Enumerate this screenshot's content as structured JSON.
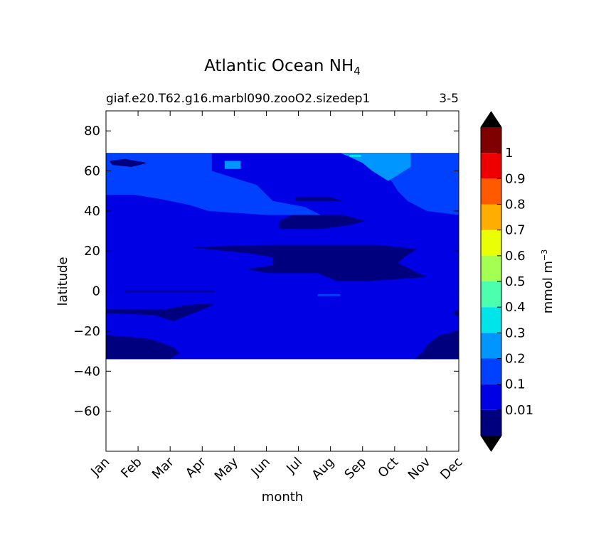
{
  "chart_data": {
    "type": "heatmap",
    "title": "Atlantic Ocean NH",
    "title_subscript": "4",
    "subtitle_left": "giaf.e20.T62.g16.marbl090.zooO2.sizedep1",
    "subtitle_right": "3-5",
    "xlabel": "month",
    "ylabel": "latitude",
    "x_ticks": [
      "Jan",
      "Feb",
      "Mar",
      "Apr",
      "May",
      "Jun",
      "Jul",
      "Aug",
      "Sep",
      "Oct",
      "Nov",
      "Dec"
    ],
    "ylim": [
      -80,
      90
    ],
    "y_ticks": [
      80,
      60,
      40,
      20,
      0,
      -20,
      -40,
      -60
    ],
    "data_lat_range": [
      -34,
      69
    ],
    "colorbar": {
      "label": "mmol m",
      "label_superscript": "−3",
      "levels": [
        0,
        0.01,
        0.1,
        0.2,
        0.3,
        0.4,
        0.5,
        0.6,
        0.7,
        0.8,
        0.9,
        1,
        1.1
      ],
      "tick_labels": [
        "0.01",
        "0.1",
        "0.2",
        "0.3",
        "0.4",
        "0.5",
        "0.6",
        "0.7",
        "0.8",
        "0.9",
        "1"
      ],
      "colors": [
        "#00007f",
        "#0000e5",
        "#0040ff",
        "#0096ff",
        "#00e5ea",
        "#4bffae",
        "#a4ff53",
        "#eaff06",
        "#ffad00",
        "#ff5a00",
        "#ee0000",
        "#7f0000"
      ],
      "extend": "both",
      "under_color": "#000000",
      "over_color": "#000000"
    },
    "regions": [
      {
        "name": "background",
        "level": 1,
        "points": [
          [
            0,
            -34
          ],
          [
            11,
            -34
          ],
          [
            11,
            69
          ],
          [
            0,
            69
          ]
        ]
      },
      {
        "name": "north-band",
        "level": 2,
        "points": [
          [
            0,
            69
          ],
          [
            3.3,
            69
          ],
          [
            3.3,
            66
          ],
          [
            3.3,
            60
          ],
          [
            4.7,
            53
          ],
          [
            5.2,
            45
          ],
          [
            6.2,
            42
          ],
          [
            6.7,
            38
          ],
          [
            5,
            38
          ],
          [
            3.2,
            40
          ],
          [
            2.6,
            43
          ],
          [
            1.7,
            46
          ],
          [
            0.9,
            48
          ],
          [
            0,
            48
          ]
        ]
      },
      {
        "name": "north-band-right",
        "level": 2,
        "points": [
          [
            7.3,
            69
          ],
          [
            11,
            69
          ],
          [
            11,
            38
          ],
          [
            10,
            40
          ],
          [
            9.4,
            45
          ],
          [
            9.1,
            50
          ],
          [
            8.9,
            55
          ],
          [
            8.6,
            60
          ],
          [
            8.1,
            64
          ]
        ]
      },
      {
        "name": "autumn-patch",
        "level": 3,
        "points": [
          [
            7.3,
            69
          ],
          [
            9.5,
            69
          ],
          [
            9.5,
            62
          ],
          [
            9.1,
            58
          ],
          [
            8.8,
            55
          ],
          [
            8.3,
            60
          ],
          [
            8,
            64
          ],
          [
            7.6,
            67
          ]
        ]
      },
      {
        "name": "may-patch",
        "level": 3,
        "points": [
          [
            3.7,
            65
          ],
          [
            4.2,
            65
          ],
          [
            4.2,
            61
          ],
          [
            3.7,
            61
          ]
        ]
      },
      {
        "name": "sep-fleck",
        "level": 4,
        "points": [
          [
            7.6,
            68
          ],
          [
            7.95,
            68
          ],
          [
            7.95,
            67
          ],
          [
            7.6,
            67
          ]
        ]
      },
      {
        "name": "jan-corner",
        "level": 0,
        "points": [
          [
            0.1,
            65
          ],
          [
            0.6,
            66
          ],
          [
            1.3,
            64
          ],
          [
            0.8,
            62
          ],
          [
            0.2,
            63
          ]
        ]
      },
      {
        "name": "aug-streak",
        "level": 0,
        "points": [
          [
            5.9,
            47
          ],
          [
            7,
            47
          ],
          [
            7.4,
            45
          ],
          [
            6.6,
            45
          ],
          [
            5.9,
            45
          ]
        ]
      },
      {
        "name": "jul-blob",
        "level": 0,
        "points": [
          [
            5.4,
            35
          ],
          [
            5.8,
            38
          ],
          [
            7.4,
            38
          ],
          [
            8.1,
            35
          ],
          [
            7.6,
            33
          ],
          [
            6.7,
            31
          ],
          [
            5.4,
            31
          ]
        ]
      },
      {
        "name": "summer-blob",
        "level": 0,
        "points": [
          [
            2.6,
            22
          ],
          [
            5,
            23
          ],
          [
            8.5,
            23
          ],
          [
            9.7,
            21
          ],
          [
            9.3,
            17
          ],
          [
            9.1,
            14
          ],
          [
            10,
            7
          ],
          [
            8.2,
            5
          ],
          [
            7.2,
            5
          ],
          [
            6.6,
            9
          ],
          [
            5,
            9
          ],
          [
            4.4,
            11
          ],
          [
            5.2,
            13
          ],
          [
            5.2,
            17
          ],
          [
            4.4,
            19
          ],
          [
            3.1,
            21
          ]
        ]
      },
      {
        "name": "eq-line",
        "level": 0,
        "points": [
          [
            0.6,
            0.3
          ],
          [
            3.4,
            0.3
          ],
          [
            3.4,
            -0.4
          ],
          [
            0.6,
            -0.4
          ]
        ]
      },
      {
        "name": "aug-eq-fleck",
        "level": 2,
        "points": [
          [
            6.6,
            -1.5
          ],
          [
            7.3,
            -1.5
          ],
          [
            7.3,
            -2.5
          ],
          [
            6.6,
            -2.5
          ]
        ]
      },
      {
        "name": "south-west-blob",
        "level": 0,
        "points": [
          [
            0,
            -11
          ],
          [
            1.5,
            -12
          ],
          [
            2.1,
            -15
          ],
          [
            3.2,
            -8
          ],
          [
            3.4,
            -6
          ],
          [
            2.5,
            -7
          ],
          [
            1.9,
            -9
          ],
          [
            0,
            -9
          ]
        ]
      },
      {
        "name": "south-west-corner",
        "level": 0,
        "points": [
          [
            0,
            -22
          ],
          [
            0.8,
            -23
          ],
          [
            1.4,
            -24
          ],
          [
            2.1,
            -28
          ],
          [
            2.3,
            -31
          ],
          [
            2,
            -34
          ],
          [
            0,
            -34
          ]
        ]
      },
      {
        "name": "south-east-blob",
        "level": 0,
        "points": [
          [
            11,
            -20
          ],
          [
            10.4,
            -22
          ],
          [
            10,
            -27
          ],
          [
            9.9,
            -30
          ],
          [
            9.6,
            -34
          ],
          [
            11,
            -34
          ]
        ]
      },
      {
        "name": "dec-edge",
        "level": 0,
        "points": [
          [
            11,
            -9
          ],
          [
            10.8,
            -11
          ],
          [
            11,
            -13
          ]
        ]
      }
    ]
  }
}
